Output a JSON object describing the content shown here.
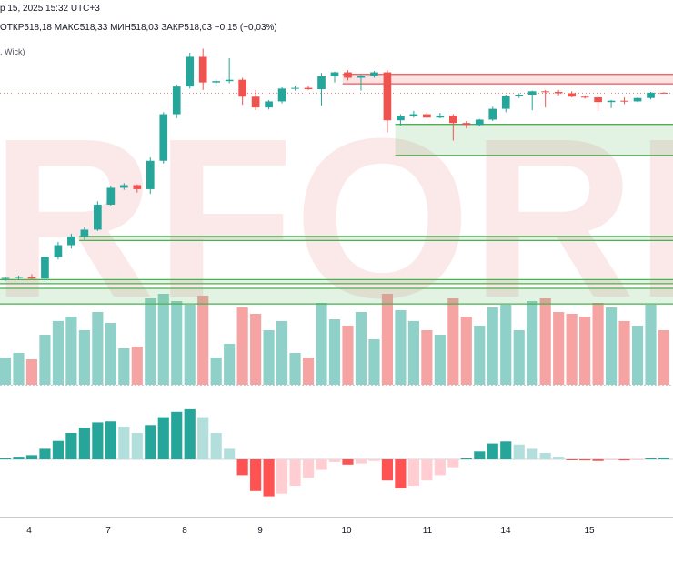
{
  "header": {
    "date_line": "р 15, 2025 15:32 UTC+3",
    "ohlc": [
      {
        "label": "ОТКР",
        "value": "518,18"
      },
      {
        "label": "МАКС",
        "value": "518,33"
      },
      {
        "label": "МИН",
        "value": "518,03"
      },
      {
        "label": "ЗАКР",
        "value": "518,03"
      }
    ],
    "change": "−0,15 (−0,03%)",
    "indicator_line": ", Wick)"
  },
  "watermark": {
    "text": "RFOREX",
    "color": "#e06262"
  },
  "colors": {
    "bull": "#26a69a",
    "bear": "#ef5350",
    "bull_vol": "#8fd1c9",
    "bear_vol": "#f5a3a3",
    "zone_red": "#ef5350",
    "zone_green": "#4caf50",
    "osc_bull_strong": "#26a69a",
    "osc_bull_weak": "#b2dfdb",
    "osc_bear_strong": "#ff5252",
    "osc_bear_weak": "#ffcdd2",
    "last_price_line": "#ef5350"
  },
  "chart_data": {
    "type": "candlestick",
    "x_tick_labels": [
      "4",
      "7",
      "8",
      "9",
      "10",
      "11",
      "14",
      "15"
    ],
    "price_range": [
      440,
      530
    ],
    "last_price": 518.03,
    "candles": [
      [
        463.0,
        463.6,
        462.4,
        463.3
      ],
      [
        463.3,
        464.0,
        462.8,
        463.6
      ],
      [
        463.6,
        464.4,
        463.0,
        463.1
      ],
      [
        463.1,
        470.0,
        462.2,
        469.5
      ],
      [
        469.5,
        474.0,
        468.8,
        473.0
      ],
      [
        473.0,
        476.4,
        472.0,
        475.6
      ],
      [
        475.6,
        478.4,
        474.6,
        477.6
      ],
      [
        477.6,
        486.0,
        477.2,
        485.0
      ],
      [
        485.0,
        490.6,
        484.6,
        490.0
      ],
      [
        490.0,
        491.4,
        489.4,
        490.8
      ],
      [
        490.8,
        491.0,
        488.6,
        489.6
      ],
      [
        489.6,
        499.0,
        488.2,
        498.0
      ],
      [
        498.0,
        512.4,
        497.2,
        511.8
      ],
      [
        511.8,
        520.6,
        510.6,
        520.0
      ],
      [
        520.0,
        530.0,
        519.4,
        528.8
      ],
      [
        528.8,
        531.2,
        519.0,
        521.2
      ],
      [
        521.2,
        522.0,
        520.2,
        521.6
      ],
      [
        521.6,
        528.4,
        521.0,
        522.0
      ],
      [
        522.0,
        522.6,
        514.6,
        517.0
      ],
      [
        517.0,
        519.0,
        513.0,
        513.8
      ],
      [
        513.8,
        516.0,
        513.2,
        515.6
      ],
      [
        515.6,
        519.8,
        515.0,
        519.4
      ],
      [
        519.4,
        520.2,
        518.8,
        519.6
      ],
      [
        519.6,
        520.2,
        519.0,
        519.2
      ],
      [
        519.2,
        524.0,
        514.4,
        523.0
      ],
      [
        523.0,
        524.4,
        521.2,
        524.2
      ],
      [
        524.2,
        524.8,
        521.8,
        522.6
      ],
      [
        522.6,
        523.4,
        518.8,
        523.2
      ],
      [
        523.2,
        524.6,
        522.6,
        524.2
      ],
      [
        524.2,
        524.8,
        506.4,
        510.0
      ],
      [
        510.0,
        511.8,
        508.4,
        511.2
      ],
      [
        511.2,
        512.8,
        510.8,
        511.8
      ],
      [
        511.8,
        512.4,
        510.8,
        510.8
      ],
      [
        510.8,
        512.2,
        510.6,
        511.4
      ],
      [
        511.4,
        511.8,
        504.0,
        509.2
      ],
      [
        509.2,
        509.8,
        507.6,
        508.6
      ],
      [
        508.6,
        510.4,
        508.2,
        510.2
      ],
      [
        510.2,
        514.0,
        509.8,
        513.4
      ],
      [
        513.4,
        517.6,
        512.4,
        517.2
      ],
      [
        517.2,
        518.0,
        516.6,
        517.6
      ],
      [
        517.6,
        518.8,
        513.0,
        518.6
      ],
      [
        518.6,
        519.0,
        513.8,
        518.4
      ],
      [
        518.4,
        519.0,
        517.4,
        518.0
      ],
      [
        518.0,
        518.6,
        516.8,
        517.0
      ],
      [
        517.0,
        517.4,
        516.4,
        516.8
      ],
      [
        516.8,
        517.2,
        512.8,
        515.4
      ],
      [
        515.4,
        516.0,
        513.6,
        515.8
      ],
      [
        515.8,
        516.8,
        514.8,
        515.6
      ],
      [
        515.6,
        516.8,
        515.4,
        516.6
      ],
      [
        516.6,
        518.4,
        516.2,
        518.18
      ],
      [
        518.18,
        518.33,
        518.03,
        518.03
      ]
    ],
    "volume_ratio": [
      0.3,
      0.35,
      0.28,
      0.55,
      0.7,
      0.75,
      0.6,
      0.8,
      0.68,
      0.4,
      0.42,
      0.95,
      1.0,
      0.92,
      0.88,
      0.98,
      0.3,
      0.45,
      0.85,
      0.78,
      0.6,
      0.7,
      0.35,
      0.3,
      0.9,
      0.72,
      0.65,
      0.8,
      0.5,
      1.0,
      0.82,
      0.7,
      0.6,
      0.55,
      0.95,
      0.75,
      0.65,
      0.85,
      0.88,
      0.6,
      0.92,
      0.95,
      0.8,
      0.78,
      0.75,
      0.9,
      0.85,
      0.7,
      0.65,
      0.88,
      0.6
    ],
    "oscillator": [
      0.2,
      0.5,
      0.8,
      2.0,
      3.5,
      5.0,
      6.0,
      7.0,
      7.2,
      6.2,
      5.0,
      6.5,
      8.0,
      9.0,
      9.5,
      8.0,
      5.0,
      2.0,
      -3.0,
      -6.0,
      -7.0,
      -6.5,
      -5.0,
      -3.5,
      -2.0,
      -0.5,
      -1.0,
      -0.8,
      -0.3,
      -4.0,
      -5.5,
      -5.0,
      -4.0,
      -3.0,
      -1.5,
      0.2,
      1.5,
      3.0,
      3.4,
      2.8,
      2.0,
      1.2,
      0.5,
      -0.1,
      -0.2,
      -0.3,
      -0.1,
      -0.2,
      -0.1,
      0.1,
      0.3
    ],
    "zones": [
      {
        "kind": "resistance",
        "from_index": 26,
        "price_top": 523.6,
        "price_bottom": 520.8
      },
      {
        "kind": "support",
        "from_index": 30,
        "price_top": 508.8,
        "price_bottom": 499.6
      },
      {
        "kind": "support",
        "from_index": 6,
        "price_top": 475.6,
        "price_bottom": 474.4
      },
      {
        "kind": "support",
        "from_index": 0,
        "price_top": 462.8,
        "price_bottom": 461.6
      },
      {
        "kind": "support",
        "from_index": 0,
        "price_top": 460.2,
        "price_bottom": 455.6
      }
    ]
  }
}
